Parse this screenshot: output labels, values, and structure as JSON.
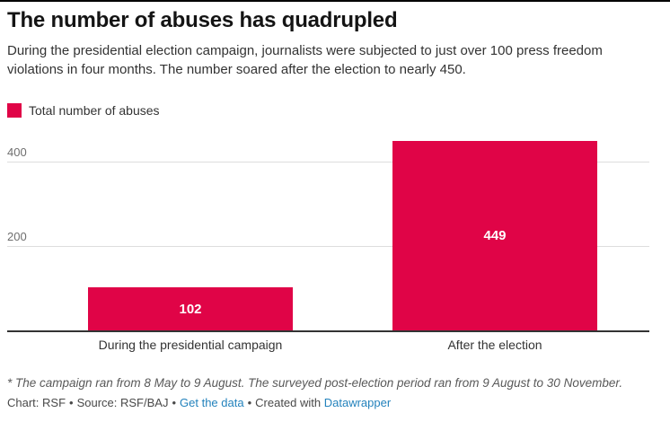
{
  "window": {
    "top_bar_color": "#000000"
  },
  "header": {
    "title": "The number of abuses has quadrupled",
    "description": "During the presidential election campaign, journalists were subjected to just over 100 press freedom violations in four months. The number soared after the election to nearly 450."
  },
  "legend": {
    "items": [
      {
        "label": "Total number of abuses",
        "color": "#e00447"
      }
    ]
  },
  "chart_data": {
    "type": "bar",
    "title": "The number of abuses has quadrupled",
    "categories": [
      "During the presidential campaign",
      "After the election"
    ],
    "series": [
      {
        "name": "Total number of abuses",
        "values": [
          102,
          449
        ]
      }
    ],
    "bar_color": "#e00447",
    "value_label_color": "#ffffff",
    "xlabel": "",
    "ylabel": "",
    "yticks": [
      200,
      400
    ],
    "ylim": [
      0,
      468
    ],
    "grid": true,
    "gridline_color": "#dddddd",
    "baseline_color": "#333333",
    "legend_position": "top-left",
    "value_labels_inside_bars": true
  },
  "footnote": "* The campaign ran from 8 May to 9 August. The surveyed post-election period ran from 9 August to 30 November.",
  "footer": {
    "chart_credit": "Chart: RSF",
    "separator": "•",
    "source_label": "Source: RSF/BAJ",
    "get_data_link": "Get the data",
    "created_with": "Created with",
    "datawrapper_link": "Datawrapper",
    "link_color": "#2382bc"
  }
}
